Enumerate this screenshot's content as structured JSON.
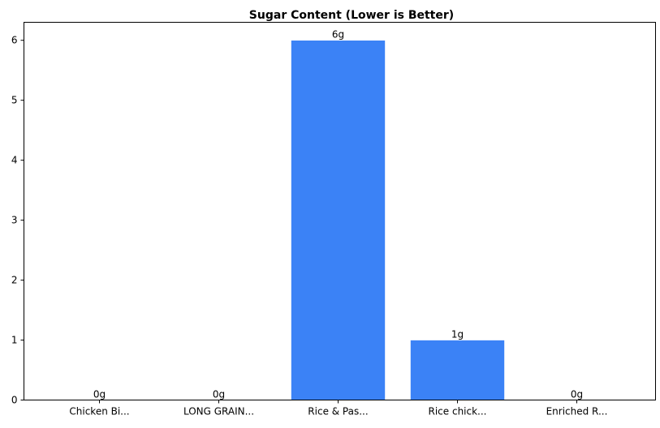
{
  "chart_data": {
    "type": "bar",
    "title": "Sugar Content (Lower is Better)",
    "xlabel": "",
    "ylabel": "",
    "categories": [
      "Chicken Bi...",
      "LONG GRAIN...",
      "Rice & Pas...",
      "Rice chick...",
      "Enriched R..."
    ],
    "values": [
      0,
      0,
      6,
      1,
      0
    ],
    "data_labels": [
      "0g",
      "0g",
      "6g",
      "1g",
      "0g"
    ],
    "ylim": [
      0,
      6.3
    ],
    "yticks": [
      0,
      1,
      2,
      3,
      4,
      5,
      6
    ],
    "bar_color": "#3b82f6",
    "grid": false,
    "legend": "none"
  }
}
